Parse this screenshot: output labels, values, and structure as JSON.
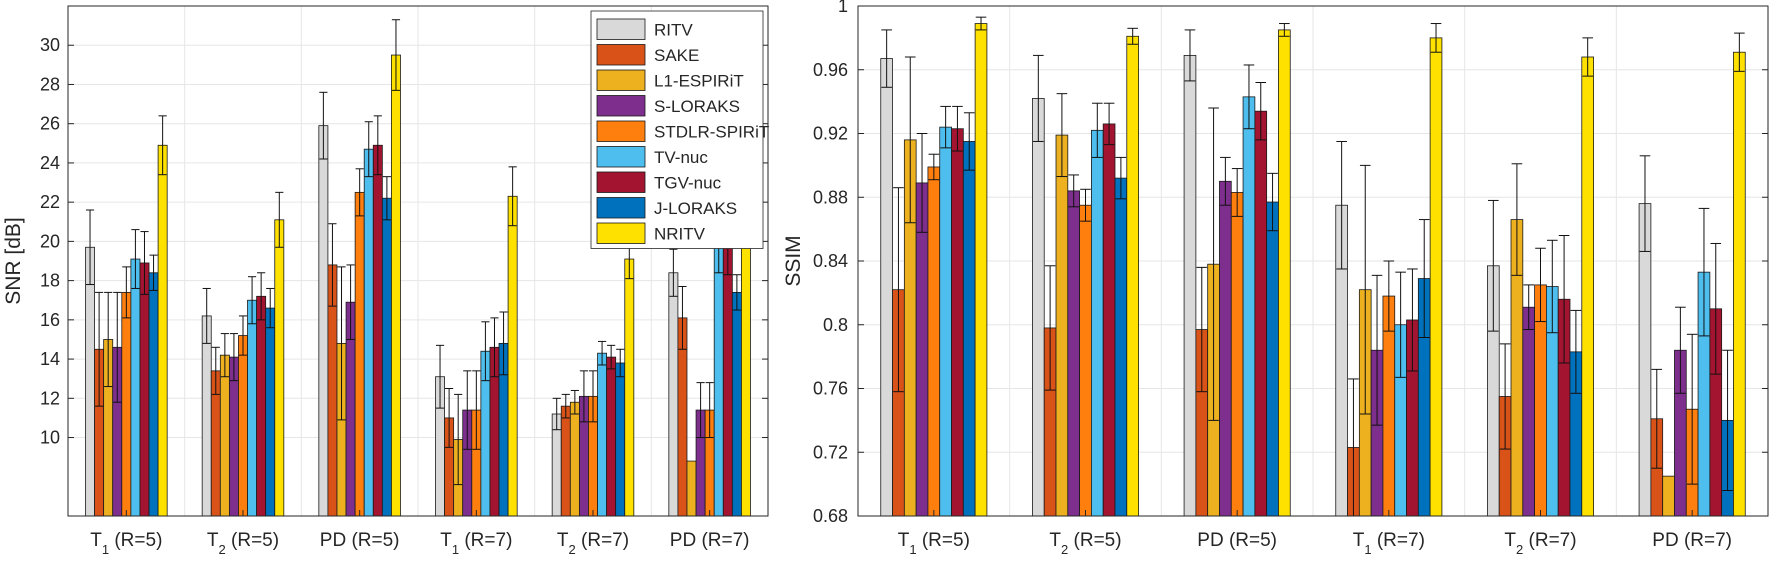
{
  "chart_data": [
    {
      "type": "bar",
      "categories": [
        "T1 (R=5)",
        "T2 (R=5)",
        "PD (R=5)",
        "T1 (R=7)",
        "T2 (R=7)",
        "PD (R=7)"
      ],
      "category_labels": [
        {
          "pre": "T",
          "sub": "1",
          "post": " (R=5)"
        },
        {
          "pre": "T",
          "sub": "2",
          "post": " (R=5)"
        },
        {
          "pre": "PD (R=5)",
          "sub": "",
          "post": ""
        },
        {
          "pre": "T",
          "sub": "1",
          "post": " (R=7)"
        },
        {
          "pre": "T",
          "sub": "2",
          "post": " (R=7)"
        },
        {
          "pre": "PD (R=7)",
          "sub": "",
          "post": ""
        }
      ],
      "ylabel": "SNR [dB]",
      "ylim": [
        6,
        32
      ],
      "yticks": [
        10,
        12,
        14,
        16,
        18,
        20,
        22,
        24,
        26,
        28,
        30
      ],
      "ytick_labels": [
        "10",
        "12",
        "14",
        "16",
        "18",
        "20",
        "22",
        "24",
        "26",
        "28",
        "30"
      ],
      "grid": true,
      "legend_position": "top-right",
      "series": [
        {
          "name": "RITV",
          "values": [
            19.7,
            16.2,
            25.9,
            13.1,
            11.2,
            18.4
          ],
          "errors": [
            1.9,
            1.4,
            1.7,
            1.6,
            0.8,
            1.2
          ]
        },
        {
          "name": "SAKE",
          "values": [
            14.5,
            13.4,
            18.8,
            11.0,
            11.6,
            16.1
          ],
          "errors": [
            2.9,
            1.2,
            2.1,
            1.5,
            0.6,
            1.6
          ]
        },
        {
          "name": "L1-ESPIRiT",
          "values": [
            15.0,
            14.2,
            14.8,
            9.9,
            11.8,
            8.8
          ],
          "errors": [
            2.4,
            1.1,
            3.9,
            2.3,
            0.6,
            0.0
          ]
        },
        {
          "name": "S-LORAKS",
          "values": [
            14.6,
            14.1,
            16.9,
            11.4,
            12.1,
            11.4
          ],
          "errors": [
            2.8,
            1.2,
            1.9,
            2.0,
            1.3,
            1.4
          ]
        },
        {
          "name": "STDLR-SPIRiT",
          "values": [
            17.4,
            15.2,
            22.5,
            11.4,
            12.1,
            11.4
          ],
          "errors": [
            1.3,
            1.0,
            1.2,
            2.0,
            1.3,
            1.4
          ]
        },
        {
          "name": "TV-nuc",
          "values": [
            19.1,
            17.0,
            24.7,
            14.4,
            14.3,
            19.9
          ],
          "errors": [
            1.5,
            1.2,
            1.4,
            1.5,
            0.6,
            1.5
          ]
        },
        {
          "name": "TGV-nuc",
          "values": [
            18.9,
            17.2,
            24.9,
            14.6,
            14.1,
            19.7
          ],
          "errors": [
            1.6,
            1.2,
            1.5,
            1.5,
            0.6,
            1.4
          ]
        },
        {
          "name": "J-LORAKS",
          "values": [
            18.4,
            16.6,
            22.2,
            14.8,
            13.8,
            17.4
          ],
          "errors": [
            0.9,
            1.0,
            1.1,
            1.6,
            0.7,
            0.9
          ]
        },
        {
          "name": "NRITV",
          "values": [
            24.9,
            21.1,
            29.5,
            22.3,
            19.1,
            26.9
          ],
          "errors": [
            1.5,
            1.4,
            1.8,
            1.5,
            1.0,
            1.8
          ]
        }
      ]
    },
    {
      "type": "bar",
      "categories": [
        "T1 (R=5)",
        "T2 (R=5)",
        "PD (R=5)",
        "T1 (R=7)",
        "T2 (R=7)",
        "PD (R=7)"
      ],
      "category_labels": [
        {
          "pre": "T",
          "sub": "1",
          "post": " (R=5)"
        },
        {
          "pre": "T",
          "sub": "2",
          "post": " (R=5)"
        },
        {
          "pre": "PD (R=5)",
          "sub": "",
          "post": ""
        },
        {
          "pre": "T",
          "sub": "1",
          "post": " (R=7)"
        },
        {
          "pre": "T",
          "sub": "2",
          "post": " (R=7)"
        },
        {
          "pre": "PD (R=7)",
          "sub": "",
          "post": ""
        }
      ],
      "ylabel": "SSIM",
      "ylim": [
        0.68,
        1.0
      ],
      "yticks": [
        0.68,
        0.72,
        0.76,
        0.8,
        0.84,
        0.88,
        0.92,
        0.96,
        1.0
      ],
      "ytick_labels": [
        "0.68",
        "0.72",
        "0.76",
        "0.8",
        "0.84",
        "0.88",
        "0.92",
        "0.96",
        "1"
      ],
      "grid": true,
      "legend_position": "none",
      "series": [
        {
          "name": "RITV",
          "values": [
            0.967,
            0.942,
            0.969,
            0.875,
            0.837,
            0.876
          ],
          "errors": [
            0.018,
            0.027,
            0.016,
            0.04,
            0.041,
            0.03
          ]
        },
        {
          "name": "SAKE",
          "values": [
            0.822,
            0.798,
            0.797,
            0.723,
            0.755,
            0.741
          ],
          "errors": [
            0.064,
            0.039,
            0.039,
            0.043,
            0.033,
            0.031
          ]
        },
        {
          "name": "L1-ESPIRiT",
          "values": [
            0.916,
            0.919,
            0.838,
            0.822,
            0.866,
            0.705
          ],
          "errors": [
            0.052,
            0.026,
            0.098,
            0.078,
            0.035,
            0.0
          ]
        },
        {
          "name": "S-LORAKS",
          "values": [
            0.889,
            0.884,
            0.89,
            0.784,
            0.811,
            0.784
          ],
          "errors": [
            0.031,
            0.01,
            0.015,
            0.047,
            0.014,
            0.027
          ]
        },
        {
          "name": "STDLR-SPIRiT",
          "values": [
            0.899,
            0.875,
            0.883,
            0.818,
            0.825,
            0.747
          ],
          "errors": [
            0.008,
            0.01,
            0.015,
            0.022,
            0.023,
            0.047
          ]
        },
        {
          "name": "TV-nuc",
          "values": [
            0.924,
            0.922,
            0.943,
            0.8,
            0.824,
            0.833
          ],
          "errors": [
            0.013,
            0.017,
            0.02,
            0.033,
            0.029,
            0.04
          ]
        },
        {
          "name": "TGV-nuc",
          "values": [
            0.923,
            0.926,
            0.934,
            0.803,
            0.816,
            0.81
          ],
          "errors": [
            0.014,
            0.013,
            0.018,
            0.032,
            0.04,
            0.041
          ]
        },
        {
          "name": "J-LORAKS",
          "values": [
            0.915,
            0.892,
            0.877,
            0.829,
            0.783,
            0.74
          ],
          "errors": [
            0.018,
            0.013,
            0.018,
            0.037,
            0.026,
            0.044
          ]
        },
        {
          "name": "NRITV",
          "values": [
            0.989,
            0.981,
            0.985,
            0.98,
            0.968,
            0.971
          ],
          "errors": [
            0.004,
            0.005,
            0.004,
            0.009,
            0.012,
            0.012
          ]
        }
      ]
    }
  ],
  "series_colors": [
    "#D9D9D9",
    "#D95319",
    "#EDB120",
    "#7E2F8E",
    "#FF7F0E",
    "#4DBEEE",
    "#A2142F",
    "#0072BD",
    "#FFE100"
  ]
}
